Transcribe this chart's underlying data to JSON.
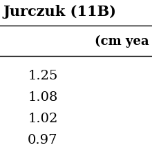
{
  "title": "Jurczuk (11B)",
  "col_header": "(cm yea",
  "values": [
    "1.25",
    "1.08",
    "1.02",
    "0.97"
  ],
  "bg_color": "#ffffff",
  "text_color": "#000000",
  "title_fontsize": 15,
  "header_fontsize": 13,
  "value_fontsize": 14
}
